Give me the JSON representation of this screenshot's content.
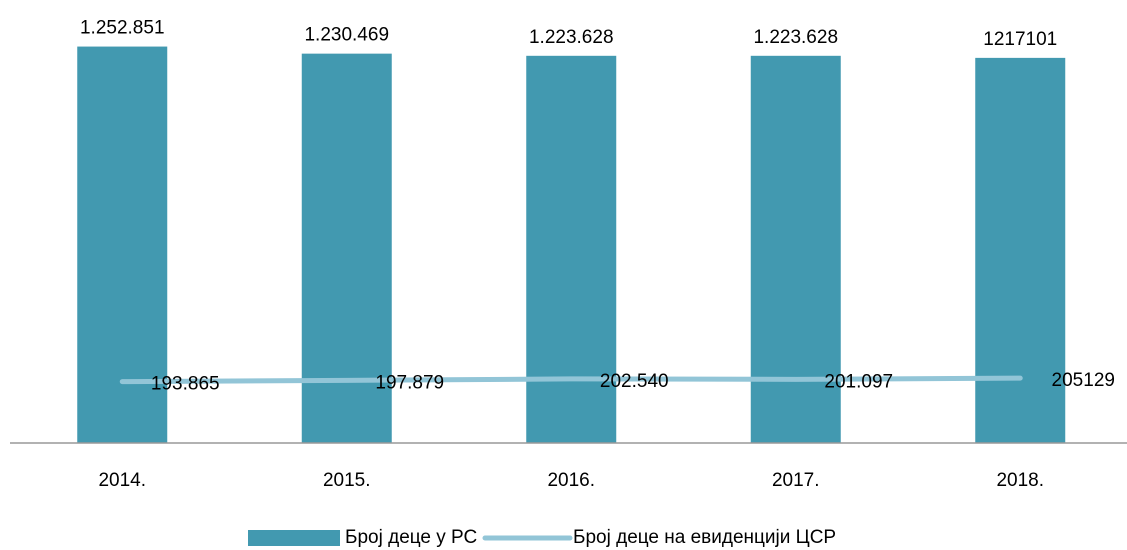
{
  "chart_data": {
    "type": "bar",
    "categories": [
      "2014.",
      "2015.",
      "2016.",
      "2017.",
      "2018."
    ],
    "series": [
      {
        "name": "Број деце у РС",
        "type": "bar",
        "color": "#4299b0",
        "values": [
          1252851,
          1230469,
          1223628,
          1223628,
          1217101
        ],
        "value_labels": [
          "1.252.851",
          "1.230.469",
          "1.223.628",
          "1.223.628",
          "1217101"
        ]
      },
      {
        "name": "Број деце на евиденцији ЦСР",
        "type": "line",
        "color": "#92c5d7",
        "values": [
          193865,
          197879,
          202540,
          201097,
          205129
        ],
        "value_labels": [
          "193.865",
          "197.879",
          "202.540",
          "201.097",
          "205129"
        ]
      }
    ],
    "ylim": [
      0,
      1400000
    ],
    "legend": "bottom"
  }
}
